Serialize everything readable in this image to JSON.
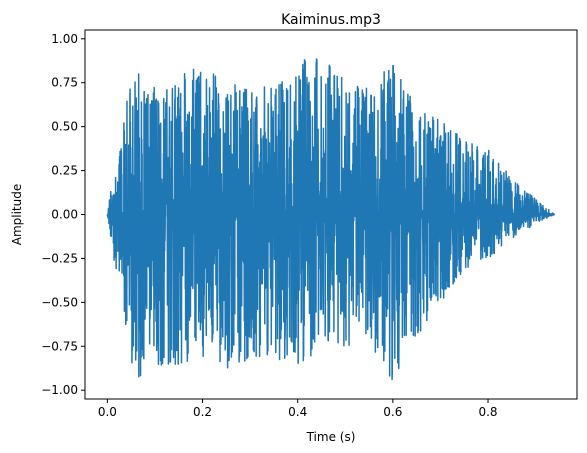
{
  "chart_data": {
    "type": "line",
    "title": "Kaiminus.mp3",
    "xlabel": "Time (s)",
    "ylabel": "Amplitude",
    "xlim": [
      -0.047,
      0.987
    ],
    "ylim": [
      -1.05,
      1.05
    ],
    "x_ticks": [
      0.0,
      0.2,
      0.4,
      0.6,
      0.8
    ],
    "x_tick_labels": [
      "0.0",
      "0.2",
      "0.4",
      "0.6",
      "0.8"
    ],
    "y_ticks": [
      1.0,
      0.75,
      0.5,
      0.25,
      0.0,
      -0.25,
      -0.5,
      -0.75,
      -1.0
    ],
    "y_tick_labels": [
      "1.00",
      "0.75",
      "0.50",
      "0.25",
      "0.00",
      "−0.25",
      "−0.50",
      "−0.75",
      "−1.00"
    ],
    "grid": false,
    "series": [
      {
        "color": "#1f77b4",
        "duration_s": 0.94,
        "envelope": {
          "time": [
            0.0,
            0.01,
            0.02,
            0.03,
            0.05,
            0.08,
            0.1,
            0.15,
            0.2,
            0.25,
            0.3,
            0.35,
            0.4,
            0.45,
            0.5,
            0.55,
            0.6,
            0.65,
            0.7,
            0.75,
            0.8,
            0.85,
            0.9,
            0.94
          ],
          "max": [
            0.0,
            0.2,
            0.23,
            0.43,
            0.85,
            0.78,
            0.75,
            0.78,
            0.87,
            0.75,
            0.72,
            0.73,
            0.85,
            0.97,
            0.75,
            0.73,
            0.87,
            0.6,
            0.55,
            0.42,
            0.4,
            0.2,
            0.09,
            0.0
          ],
          "min": [
            0.0,
            -0.2,
            -0.35,
            -0.45,
            -0.9,
            -0.95,
            -0.9,
            -0.9,
            -0.85,
            -0.9,
            -0.85,
            -0.82,
            -0.92,
            -0.72,
            -0.75,
            -0.73,
            -0.95,
            -0.7,
            -0.5,
            -0.35,
            -0.25,
            -0.15,
            -0.05,
            0.0
          ]
        }
      }
    ]
  }
}
